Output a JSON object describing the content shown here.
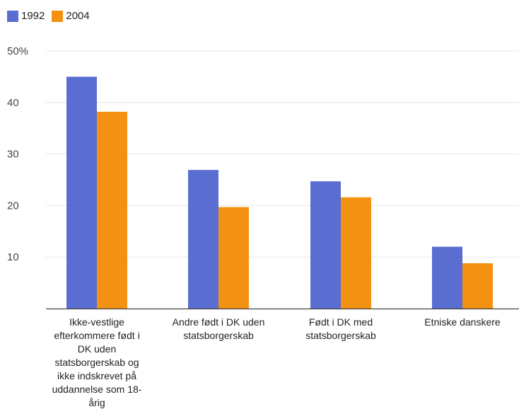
{
  "chart_data": {
    "type": "bar",
    "categories": [
      "Ikke-vestlige efterkommere født i DK uden statsborgerskab og ikke indskrevet på uddannelse som 18-årig",
      "Andre født i DK uden statsborgerskab",
      "Født i DK med statsborgerskab",
      "Etniske danskere"
    ],
    "category_lines": [
      [
        "Ikke-vestlige",
        "efterkommere født i",
        "DK uden",
        "statsborgerskab og",
        "ikke indskrevet på",
        "uddannelse som 18-",
        "årig"
      ],
      [
        "Andre født i DK uden",
        "statsborgerskab"
      ],
      [
        "Født i DK med",
        "statsborgerskab"
      ],
      [
        "Etniske danskere"
      ]
    ],
    "series": [
      {
        "name": "1992",
        "color": "#5a6ed2",
        "values": [
          45,
          26.9,
          24.7,
          12
        ]
      },
      {
        "name": "2004",
        "color": "#f39212",
        "values": [
          38.2,
          19.7,
          21.6,
          8.8
        ]
      }
    ],
    "ylim": [
      0,
      50
    ],
    "yticks": [
      10,
      20,
      30,
      40,
      50
    ],
    "ytick_labels": [
      "10",
      "20",
      "30",
      "40",
      "50%"
    ],
    "title": "",
    "xlabel": "",
    "ylabel": "",
    "grid": true,
    "legend_position": "top-left"
  }
}
